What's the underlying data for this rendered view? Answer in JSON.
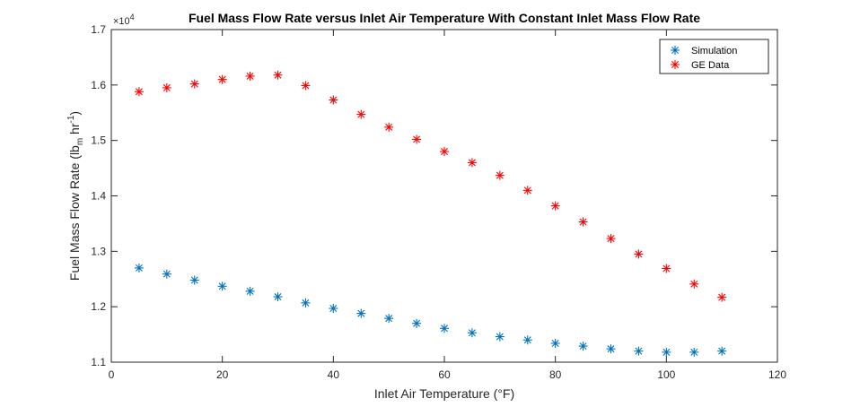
{
  "chart_data": {
    "type": "scatter",
    "title": "Fuel Mass Flow Rate versus Inlet Air Temperature With Constant Inlet Mass Flow Rate",
    "xlabel": "Inlet Air Temperature (°F)",
    "ylabel": {
      "prefix": "Fuel Mass Flow Rate (lb",
      "sub": "m",
      "middle": " hr",
      "sup": "-1",
      "suffix": ")"
    },
    "y_multiplier": {
      "base": "×10",
      "exponent": "4"
    },
    "xlim": [
      0,
      120
    ],
    "ylim": [
      11000,
      17000
    ],
    "x_ticks": [
      0,
      20,
      40,
      60,
      80,
      100,
      120
    ],
    "x_tick_labels": [
      "0",
      "20",
      "40",
      "60",
      "80",
      "100",
      "120"
    ],
    "y_ticks": [
      11000,
      12000,
      13000,
      14000,
      15000,
      16000,
      17000
    ],
    "y_tick_labels": [
      "1.1",
      "1.2",
      "1.3",
      "1.4",
      "1.5",
      "1.6",
      "1.7"
    ],
    "grid": false,
    "legend_position": "top-right",
    "marker": "asterisk",
    "x": [
      5,
      10,
      15,
      20,
      25,
      30,
      35,
      40,
      45,
      50,
      55,
      60,
      65,
      70,
      75,
      80,
      85,
      90,
      95,
      100,
      105,
      110
    ],
    "series": [
      {
        "name": "Simulation",
        "color": "#0072BD",
        "values": [
          12700,
          12590,
          12480,
          12370,
          12280,
          12180,
          12070,
          11970,
          11880,
          11790,
          11700,
          11610,
          11530,
          11460,
          11400,
          11340,
          11290,
          11240,
          11200,
          11180,
          11180,
          11200
        ]
      },
      {
        "name": "GE Data",
        "color": "#FF0000",
        "values": [
          15880,
          15950,
          16020,
          16100,
          16160,
          16180,
          15990,
          15730,
          15470,
          15240,
          15020,
          14800,
          14600,
          14370,
          14100,
          13820,
          13530,
          13230,
          12950,
          12690,
          12410,
          12170
        ]
      }
    ]
  }
}
